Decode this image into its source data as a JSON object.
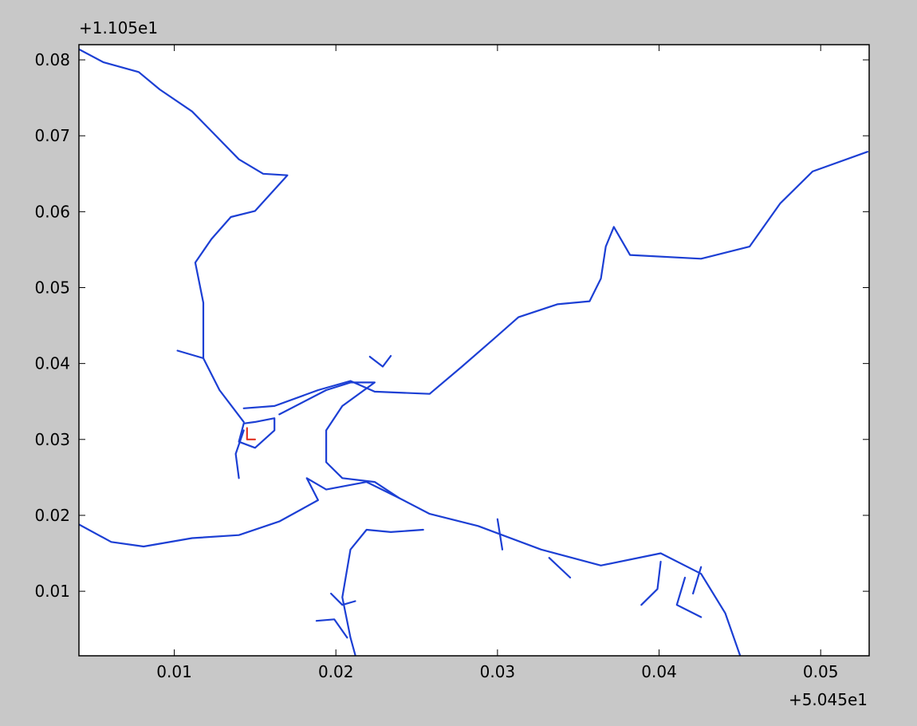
{
  "chart_data": {
    "type": "line",
    "x_offset_label": "+5.045e1",
    "y_offset_label": "+1.105e1",
    "xlim": [
      0.0041,
      0.053
    ],
    "ylim": [
      0.0015,
      0.082
    ],
    "xticks": [
      0.01,
      0.02,
      0.03,
      0.04,
      0.05
    ],
    "yticks": [
      0.01,
      0.02,
      0.03,
      0.04,
      0.05,
      0.06,
      0.07,
      0.08
    ],
    "grid": false,
    "series": [
      {
        "color": "#1c3fd4",
        "x": [
          0.0041,
          0.0056,
          0.0078,
          0.0091,
          0.0111,
          0.0123,
          0.014,
          0.0155,
          0.017,
          0.015,
          0.0135,
          0.0123,
          0.0113,
          0.0118,
          0.0118,
          0.0128,
          0.0143
        ],
        "values": [
          0.0814,
          0.0797,
          0.0784,
          0.0761,
          0.0732,
          0.0706,
          0.0669,
          0.065,
          0.0648,
          0.0601,
          0.0593,
          0.0564,
          0.0533,
          0.048,
          0.0407,
          0.0365,
          0.0323
        ]
      },
      {
        "color": "#1c3fd4",
        "x": [
          0.0143,
          0.0162,
          0.0189,
          0.0209,
          0.0224,
          0.0258,
          0.0278,
          0.0298,
          0.0313,
          0.0337,
          0.0357,
          0.0364,
          0.0367,
          0.0372,
          0.0382,
          0.0426,
          0.0456,
          0.0475,
          0.0495,
          0.0529
        ],
        "values": [
          0.0341,
          0.0344,
          0.0365,
          0.0377,
          0.0363,
          0.036,
          0.0396,
          0.0433,
          0.0461,
          0.0478,
          0.0482,
          0.0512,
          0.0554,
          0.058,
          0.0543,
          0.0538,
          0.0554,
          0.0611,
          0.0653,
          0.0679
        ]
      },
      {
        "color": "#1c3fd4",
        "x": [
          0.0041,
          0.0061,
          0.0081,
          0.0111,
          0.014,
          0.0165,
          0.0189,
          0.0182,
          0.0194,
          0.0219,
          0.0239,
          0.0258,
          0.0288,
          0.0327,
          0.0364,
          0.0401,
          0.0426,
          0.0441,
          0.045
        ],
        "values": [
          0.0188,
          0.0165,
          0.0159,
          0.017,
          0.0174,
          0.0192,
          0.022,
          0.0249,
          0.0234,
          0.0244,
          0.0223,
          0.0202,
          0.0186,
          0.0155,
          0.0134,
          0.015,
          0.0123,
          0.0071,
          0.0016
        ]
      },
      {
        "color": "#1c3fd4",
        "x": [
          0.0165,
          0.0194,
          0.0209,
          0.0224,
          0.0204,
          0.0194,
          0.0194,
          0.0204,
          0.0224,
          0.0239
        ],
        "values": [
          0.0333,
          0.0365,
          0.0375,
          0.0375,
          0.0344,
          0.0312,
          0.027,
          0.0249,
          0.0244,
          0.0223
        ]
      },
      {
        "color": "#1c3fd4",
        "x": [
          0.0254,
          0.0234,
          0.0219,
          0.0209,
          0.0204,
          0.0209,
          0.0212
        ],
        "values": [
          0.0181,
          0.0178,
          0.0181,
          0.0155,
          0.0092,
          0.0039,
          0.0016
        ]
      },
      {
        "color": "#1c3fd4",
        "x": [
          0.0143,
          0.014,
          0.015,
          0.0162,
          0.0162,
          0.015,
          0.0143
        ],
        "values": [
          0.0321,
          0.0297,
          0.0289,
          0.0312,
          0.0328,
          0.0323,
          0.0321
        ]
      },
      {
        "color": "#1c3fd4",
        "x": [
          0.0143,
          0.0138,
          0.014
        ],
        "values": [
          0.0312,
          0.0281,
          0.0249
        ]
      },
      {
        "color": "#1c3fd4",
        "x": [
          0.0102,
          0.0118
        ],
        "values": [
          0.0417,
          0.0407
        ]
      },
      {
        "color": "#1c3fd4",
        "x": [
          0.0221,
          0.0229,
          0.0234
        ],
        "values": [
          0.0409,
          0.0396,
          0.041
        ]
      },
      {
        "color": "#1c3fd4",
        "x": [
          0.0401,
          0.0399,
          0.0389
        ],
        "values": [
          0.0139,
          0.0103,
          0.0082
        ]
      },
      {
        "color": "#1c3fd4",
        "x": [
          0.0416,
          0.0411,
          0.0426
        ],
        "values": [
          0.0118,
          0.0082,
          0.0066
        ]
      },
      {
        "color": "#1c3fd4",
        "x": [
          0.0426,
          0.0421
        ],
        "values": [
          0.0132,
          0.0097
        ]
      },
      {
        "color": "#1c3fd4",
        "x": [
          0.0197,
          0.0204,
          0.0212
        ],
        "values": [
          0.0097,
          0.0082,
          0.0087
        ]
      },
      {
        "color": "#1c3fd4",
        "x": [
          0.0188,
          0.0199,
          0.0207
        ],
        "values": [
          0.0061,
          0.0063,
          0.0039
        ]
      },
      {
        "color": "#1c3fd4",
        "x": [
          0.03,
          0.0303
        ],
        "values": [
          0.0195,
          0.0155
        ]
      },
      {
        "color": "#1c3fd4",
        "x": [
          0.0332,
          0.0345
        ],
        "values": [
          0.0144,
          0.0118
        ]
      },
      {
        "color": "#e03020",
        "x": [
          0.0145,
          0.0145,
          0.015
        ],
        "values": [
          0.0315,
          0.03,
          0.03
        ]
      }
    ]
  }
}
